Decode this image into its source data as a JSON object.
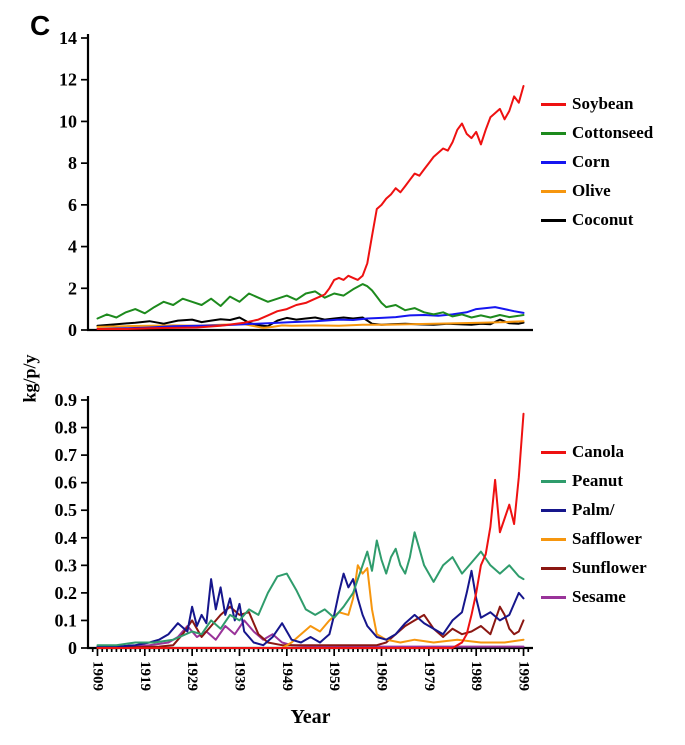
{
  "figure": {
    "panel_label": "C",
    "y_axis_label": "kg/p/y",
    "x_axis_label": "Year",
    "background": "#ffffff",
    "axis_color": "#000000"
  },
  "chart_data": [
    {
      "type": "line",
      "title": "",
      "xlabel": "Year",
      "ylabel": "kg/p/y",
      "xlim": [
        1907,
        2001
      ],
      "ylim": [
        0,
        14
      ],
      "yticks": [
        0,
        2,
        4,
        6,
        8,
        10,
        12,
        14
      ],
      "xticks": [
        1909,
        1919,
        1929,
        1939,
        1949,
        1959,
        1969,
        1979,
        1989,
        1999
      ],
      "show_x_ticks": false,
      "legend_position": "right",
      "series": [
        {
          "name": "Soybean",
          "color": "#ee1111",
          "x": [
            1909,
            1915,
            1920,
            1925,
            1930,
            1935,
            1940,
            1943,
            1945,
            1947,
            1949,
            1951,
            1953,
            1955,
            1957,
            1958,
            1959,
            1960,
            1961,
            1962,
            1963,
            1964,
            1965,
            1966,
            1967,
            1968,
            1969,
            1970,
            1971,
            1972,
            1973,
            1974,
            1975,
            1976,
            1977,
            1978,
            1979,
            1980,
            1981,
            1982,
            1983,
            1984,
            1985,
            1986,
            1987,
            1988,
            1989,
            1990,
            1991,
            1992,
            1993,
            1994,
            1995,
            1996,
            1997,
            1998,
            1999
          ],
          "y": [
            0.05,
            0.05,
            0.08,
            0.1,
            0.12,
            0.2,
            0.35,
            0.5,
            0.7,
            0.9,
            1.0,
            1.2,
            1.3,
            1.5,
            1.7,
            2.0,
            2.4,
            2.5,
            2.4,
            2.6,
            2.5,
            2.4,
            2.6,
            3.2,
            4.5,
            5.8,
            6.0,
            6.3,
            6.5,
            6.8,
            6.6,
            6.9,
            7.2,
            7.5,
            7.4,
            7.7,
            8.0,
            8.3,
            8.5,
            8.7,
            8.6,
            9.0,
            9.6,
            9.9,
            9.4,
            9.2,
            9.5,
            8.9,
            9.6,
            10.2,
            10.4,
            10.6,
            10.1,
            10.5,
            11.2,
            10.9,
            11.7
          ]
        },
        {
          "name": "Cottonseed",
          "color": "#1d8a1d",
          "x": [
            1909,
            1911,
            1913,
            1915,
            1917,
            1919,
            1921,
            1923,
            1925,
            1927,
            1929,
            1931,
            1933,
            1935,
            1937,
            1939,
            1941,
            1943,
            1945,
            1947,
            1949,
            1951,
            1953,
            1955,
            1957,
            1959,
            1961,
            1963,
            1965,
            1966,
            1967,
            1968,
            1969,
            1970,
            1972,
            1974,
            1976,
            1978,
            1980,
            1982,
            1984,
            1986,
            1988,
            1990,
            1992,
            1994,
            1996,
            1998,
            1999
          ],
          "y": [
            0.55,
            0.75,
            0.6,
            0.85,
            1.0,
            0.8,
            1.1,
            1.35,
            1.2,
            1.5,
            1.35,
            1.2,
            1.5,
            1.15,
            1.6,
            1.35,
            1.75,
            1.55,
            1.35,
            1.5,
            1.65,
            1.45,
            1.75,
            1.85,
            1.55,
            1.75,
            1.65,
            1.95,
            2.2,
            2.1,
            1.9,
            1.6,
            1.3,
            1.1,
            1.2,
            0.95,
            1.05,
            0.85,
            0.75,
            0.85,
            0.65,
            0.75,
            0.6,
            0.7,
            0.6,
            0.72,
            0.62,
            0.68,
            0.72
          ]
        },
        {
          "name": "Corn",
          "color": "#1616f0",
          "x": [
            1909,
            1915,
            1920,
            1925,
            1930,
            1935,
            1940,
            1945,
            1950,
            1955,
            1960,
            1963,
            1966,
            1969,
            1972,
            1975,
            1978,
            1981,
            1984,
            1987,
            1989,
            1991,
            1993,
            1995,
            1997,
            1999
          ],
          "y": [
            0.05,
            0.08,
            0.12,
            0.18,
            0.2,
            0.22,
            0.28,
            0.32,
            0.38,
            0.42,
            0.5,
            0.48,
            0.55,
            0.58,
            0.62,
            0.7,
            0.72,
            0.68,
            0.75,
            0.85,
            1.0,
            1.05,
            1.1,
            1.0,
            0.9,
            0.82
          ]
        },
        {
          "name": "Olive",
          "color": "#f6960e",
          "x": [
            1909,
            1915,
            1920,
            1925,
            1930,
            1935,
            1940,
            1944,
            1946,
            1948,
            1950,
            1955,
            1960,
            1965,
            1970,
            1975,
            1980,
            1985,
            1990,
            1995,
            1999
          ],
          "y": [
            0.15,
            0.18,
            0.2,
            0.22,
            0.2,
            0.25,
            0.28,
            0.1,
            0.15,
            0.22,
            0.2,
            0.22,
            0.2,
            0.25,
            0.25,
            0.28,
            0.3,
            0.32,
            0.35,
            0.38,
            0.42
          ]
        },
        {
          "name": "Coconut",
          "color": "#000000",
          "x": [
            1909,
            1913,
            1917,
            1920,
            1923,
            1926,
            1929,
            1931,
            1933,
            1935,
            1937,
            1939,
            1941,
            1943,
            1945,
            1947,
            1949,
            1951,
            1953,
            1955,
            1957,
            1959,
            1961,
            1963,
            1965,
            1967,
            1969,
            1971,
            1974,
            1977,
            1980,
            1983,
            1986,
            1988,
            1990,
            1992,
            1994,
            1996,
            1998,
            1999
          ],
          "y": [
            0.2,
            0.28,
            0.35,
            0.42,
            0.3,
            0.45,
            0.5,
            0.38,
            0.45,
            0.52,
            0.48,
            0.6,
            0.35,
            0.22,
            0.18,
            0.45,
            0.58,
            0.5,
            0.55,
            0.6,
            0.5,
            0.55,
            0.6,
            0.55,
            0.6,
            0.3,
            0.25,
            0.28,
            0.3,
            0.27,
            0.25,
            0.3,
            0.27,
            0.25,
            0.3,
            0.28,
            0.5,
            0.32,
            0.3,
            0.35
          ]
        }
      ]
    },
    {
      "type": "line",
      "title": "",
      "xlabel": "Year",
      "ylabel": "kg/p/y",
      "xlim": [
        1907,
        2001
      ],
      "ylim": [
        0,
        0.9
      ],
      "yticks": [
        0,
        0.1,
        0.2,
        0.3,
        0.4,
        0.5,
        0.6,
        0.7,
        0.8,
        0.9
      ],
      "xticks": [
        1909,
        1919,
        1929,
        1939,
        1949,
        1959,
        1969,
        1979,
        1989,
        1999
      ],
      "show_x_ticks": true,
      "legend_position": "right",
      "series": [
        {
          "name": "Canola",
          "color": "#ee1111",
          "x": [
            1909,
            1980,
            1984,
            1986,
            1987,
            1988,
            1989,
            1990,
            1991,
            1992,
            1993,
            1994,
            1995,
            1996,
            1997,
            1998,
            1999
          ],
          "y": [
            0,
            0,
            0,
            0.02,
            0.05,
            0.12,
            0.2,
            0.3,
            0.34,
            0.44,
            0.61,
            0.42,
            0.47,
            0.52,
            0.45,
            0.62,
            0.85
          ]
        },
        {
          "name": "Peanut",
          "color": "#2f9c6c",
          "x": [
            1909,
            1913,
            1917,
            1921,
            1925,
            1929,
            1931,
            1933,
            1935,
            1937,
            1939,
            1941,
            1943,
            1945,
            1947,
            1949,
            1951,
            1953,
            1955,
            1957,
            1959,
            1961,
            1963,
            1965,
            1966,
            1967,
            1968,
            1969,
            1970,
            1971,
            1972,
            1973,
            1974,
            1975,
            1976,
            1977,
            1978,
            1980,
            1982,
            1984,
            1986,
            1988,
            1990,
            1992,
            1994,
            1996,
            1998,
            1999
          ],
          "y": [
            0.01,
            0.01,
            0.02,
            0.02,
            0.03,
            0.06,
            0.05,
            0.1,
            0.07,
            0.12,
            0.1,
            0.14,
            0.12,
            0.2,
            0.26,
            0.27,
            0.21,
            0.14,
            0.12,
            0.14,
            0.11,
            0.15,
            0.2,
            0.3,
            0.35,
            0.28,
            0.39,
            0.32,
            0.27,
            0.33,
            0.36,
            0.3,
            0.27,
            0.33,
            0.42,
            0.36,
            0.3,
            0.24,
            0.3,
            0.33,
            0.27,
            0.31,
            0.35,
            0.3,
            0.27,
            0.3,
            0.26,
            0.25
          ]
        },
        {
          "name": "Palm/",
          "color": "#16168c",
          "x": [
            1909,
            1913,
            1917,
            1920,
            1922,
            1924,
            1926,
            1928,
            1929,
            1930,
            1931,
            1932,
            1933,
            1934,
            1935,
            1936,
            1937,
            1938,
            1939,
            1940,
            1942,
            1944,
            1946,
            1948,
            1950,
            1952,
            1954,
            1956,
            1958,
            1959,
            1960,
            1961,
            1962,
            1963,
            1964,
            1965,
            1966,
            1968,
            1970,
            1972,
            1974,
            1976,
            1978,
            1980,
            1982,
            1984,
            1986,
            1987,
            1988,
            1989,
            1990,
            1992,
            1994,
            1996,
            1998,
            1999
          ],
          "y": [
            0.005,
            0.005,
            0.01,
            0.02,
            0.03,
            0.05,
            0.09,
            0.06,
            0.15,
            0.08,
            0.12,
            0.09,
            0.25,
            0.14,
            0.22,
            0.12,
            0.18,
            0.1,
            0.16,
            0.06,
            0.02,
            0.01,
            0.04,
            0.09,
            0.03,
            0.02,
            0.04,
            0.02,
            0.05,
            0.12,
            0.2,
            0.27,
            0.22,
            0.25,
            0.18,
            0.12,
            0.08,
            0.04,
            0.03,
            0.05,
            0.09,
            0.12,
            0.09,
            0.07,
            0.05,
            0.1,
            0.13,
            0.2,
            0.28,
            0.18,
            0.11,
            0.13,
            0.1,
            0.12,
            0.2,
            0.18
          ]
        },
        {
          "name": "Safflower",
          "color": "#f6960e",
          "x": [
            1909,
            1948,
            1950,
            1952,
            1954,
            1956,
            1958,
            1960,
            1962,
            1963,
            1964,
            1965,
            1966,
            1967,
            1968,
            1970,
            1973,
            1976,
            1980,
            1985,
            1990,
            1995,
            1999
          ],
          "y": [
            0,
            0,
            0.02,
            0.05,
            0.08,
            0.06,
            0.1,
            0.13,
            0.12,
            0.18,
            0.3,
            0.27,
            0.29,
            0.14,
            0.05,
            0.03,
            0.02,
            0.03,
            0.02,
            0.03,
            0.02,
            0.02,
            0.03
          ]
        },
        {
          "name": "Sunflower",
          "color": "#8b1712",
          "x": [
            1909,
            1922,
            1925,
            1927,
            1929,
            1931,
            1933,
            1935,
            1937,
            1939,
            1941,
            1943,
            1945,
            1948,
            1952,
            1956,
            1960,
            1964,
            1968,
            1970,
            1972,
            1974,
            1976,
            1978,
            1980,
            1982,
            1984,
            1986,
            1988,
            1990,
            1992,
            1994,
            1995,
            1996,
            1997,
            1998,
            1999
          ],
          "y": [
            0,
            0.005,
            0.01,
            0.05,
            0.1,
            0.04,
            0.08,
            0.12,
            0.15,
            0.12,
            0.13,
            0.05,
            0.02,
            0.01,
            0.01,
            0.01,
            0.01,
            0.01,
            0.01,
            0.02,
            0.05,
            0.08,
            0.1,
            0.12,
            0.07,
            0.04,
            0.07,
            0.05,
            0.06,
            0.08,
            0.05,
            0.15,
            0.12,
            0.07,
            0.05,
            0.06,
            0.1
          ]
        },
        {
          "name": "Sesame",
          "color": "#993399",
          "x": [
            1909,
            1915,
            1920,
            1924,
            1926,
            1928,
            1930,
            1932,
            1934,
            1936,
            1938,
            1940,
            1942,
            1944,
            1946,
            1948,
            1950,
            1955,
            1960,
            1970,
            1980,
            1990,
            1999
          ],
          "y": [
            0.005,
            0.005,
            0.01,
            0.02,
            0.04,
            0.08,
            0.04,
            0.06,
            0.03,
            0.08,
            0.05,
            0.1,
            0.06,
            0.03,
            0.05,
            0.02,
            0.01,
            0.005,
            0.005,
            0.005,
            0.005,
            0.005,
            0.005
          ]
        }
      ]
    }
  ]
}
